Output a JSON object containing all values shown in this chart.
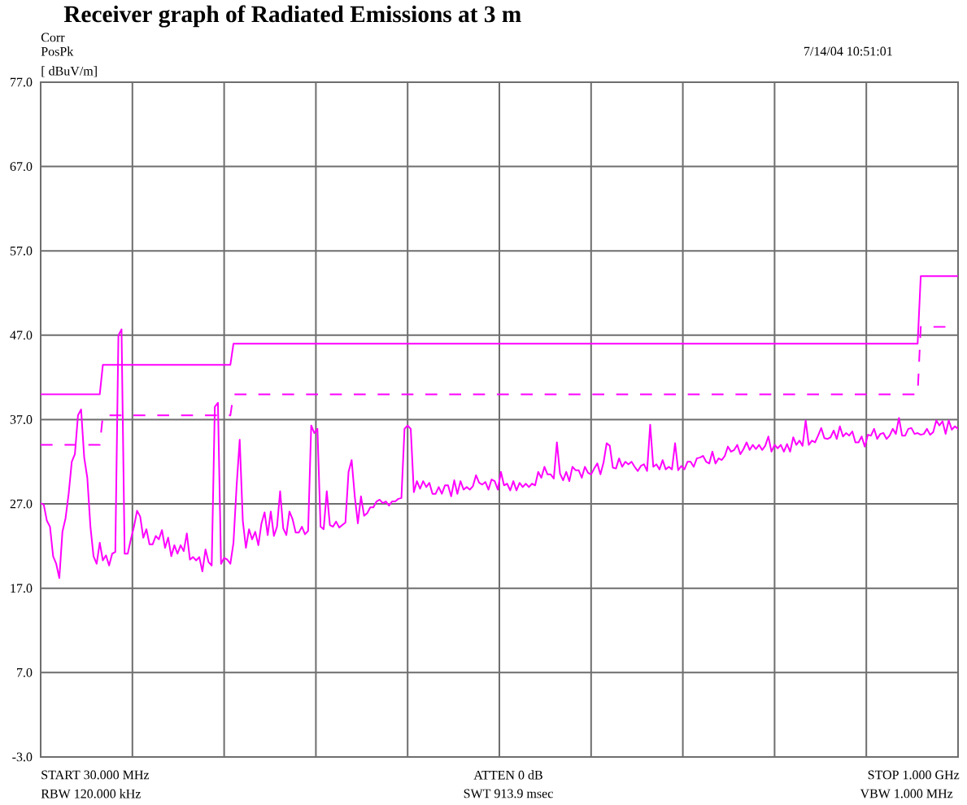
{
  "chart_data": {
    "type": "line",
    "title": "Receiver graph of Radiated Emissions at 3 m",
    "ylabel": "[ dBuV/m]",
    "annotations": [
      "Corr",
      "PosPk",
      "7/14/04 10:51:01",
      "START 30.000 MHz",
      "ATTEN 0 dB",
      "STOP 1.000 GHz",
      "RBW 120.000 kHz",
      "SWT 913.9 msec",
      "VBW 1.000 MHz"
    ],
    "ylim": [
      -3,
      77
    ],
    "yticks": [
      {
        "value": -3,
        "label": "-3.0"
      },
      {
        "value": 7,
        "label": "7.0"
      },
      {
        "value": 17,
        "label": "17.0"
      },
      {
        "value": 27,
        "label": "27.0"
      },
      {
        "value": 37,
        "label": "37.0"
      },
      {
        "value": 47,
        "label": "47.0"
      },
      {
        "value": 57,
        "label": "57.0"
      },
      {
        "value": 67,
        "label": "67.0"
      },
      {
        "value": 77,
        "label": "77.0"
      }
    ],
    "tick_labels": "y",
    "grid": true,
    "categories": [
      null,
      null,
      null,
      null,
      null,
      null,
      null,
      null,
      null,
      null,
      null,
      null,
      null,
      null,
      null,
      null,
      null,
      null,
      null,
      null,
      null,
      null,
      null,
      null,
      null,
      null,
      null,
      null,
      null,
      null,
      null,
      null,
      null,
      null,
      null,
      null,
      null,
      null,
      null,
      null,
      null,
      null,
      null,
      null,
      null,
      null,
      null,
      null,
      null,
      null,
      null,
      null,
      null,
      null,
      null,
      null,
      null,
      null,
      null,
      null,
      null,
      null,
      null,
      null,
      null,
      null,
      null,
      null,
      null,
      null,
      null,
      null,
      null,
      null,
      null,
      null,
      null,
      null,
      null,
      null,
      null,
      null,
      null,
      null,
      null,
      null,
      null,
      null,
      null,
      null,
      null,
      null,
      null,
      null,
      null,
      null,
      null,
      null,
      null,
      null,
      null,
      null,
      null,
      null,
      null,
      null,
      null,
      null,
      null,
      null,
      null,
      null,
      null,
      null,
      null,
      null,
      null,
      null,
      null,
      null,
      null,
      null,
      null,
      null,
      null,
      null,
      null,
      null,
      null,
      null,
      null,
      null,
      null,
      null,
      null,
      null,
      null,
      null,
      null,
      null,
      null,
      null,
      null,
      null,
      null,
      null,
      null,
      null,
      null,
      null,
      null,
      null,
      null,
      null,
      null,
      null,
      null,
      null,
      null,
      null,
      null,
      null,
      null,
      null,
      null,
      null,
      null,
      null,
      null,
      null,
      null,
      null,
      null,
      null,
      null,
      null,
      null,
      null,
      null,
      null,
      null,
      null,
      null,
      null,
      null,
      null,
      null,
      null,
      null,
      null,
      null,
      null,
      null,
      null,
      null,
      null,
      null,
      null,
      null,
      null,
      null,
      null,
      null,
      null,
      null,
      null,
      null,
      null,
      null,
      null,
      null,
      null,
      null,
      null,
      null,
      null,
      null,
      null,
      null,
      null,
      null,
      null,
      null,
      null,
      null,
      null,
      null,
      null,
      null,
      null,
      null,
      null,
      null,
      null,
      null,
      null,
      null,
      null,
      null,
      null,
      null,
      null,
      null,
      null,
      null,
      null,
      null,
      null,
      null,
      null,
      null,
      null,
      null,
      null,
      null,
      null,
      null,
      null,
      null,
      null,
      null,
      null,
      null,
      null,
      null,
      null,
      null,
      null,
      null,
      null,
      null,
      null,
      null,
      null,
      null,
      null,
      null,
      null,
      null,
      null,
      null,
      null,
      null,
      null,
      null,
      null,
      null,
      null,
      null,
      null,
      null,
      null,
      null,
      null,
      null,
      null
    ],
    "series": [
      {
        "color": "#ff00ff",
        "line_style": "solid",
        "values": [
          27.1,
          26.9,
          25.0,
          24.3,
          20.8,
          19.9,
          18.2,
          23.7,
          25.3,
          28.2,
          32.0,
          32.9,
          37.5,
          38.2,
          32.5,
          30.1,
          24.3,
          20.8,
          19.9,
          22.4,
          20.3,
          20.9,
          19.7,
          21.1,
          21.3,
          47.0,
          47.7,
          21.1,
          21.1,
          22.8,
          24.3,
          26.2,
          25.5,
          23.0,
          24.0,
          22.2,
          22.2,
          23.2,
          22.8,
          23.9,
          21.8,
          23.0,
          20.8,
          22.1,
          21.1,
          22.1,
          21.4,
          23.5,
          20.4,
          20.7,
          20.3,
          20.7,
          19.0,
          21.6,
          20.1,
          19.7,
          38.5,
          39.0,
          19.9,
          20.6,
          20.4,
          19.9,
          22.4,
          29.1,
          34.6,
          25.0,
          21.8,
          24.0,
          22.8,
          23.7,
          22.1,
          24.7,
          26.0,
          23.3,
          26.1,
          23.2,
          24.3,
          28.5,
          24.1,
          23.3,
          26.1,
          25.2,
          23.6,
          23.6,
          24.3,
          23.4,
          23.8,
          36.3,
          35.4,
          35.9,
          24.3,
          24.0,
          28.5,
          24.5,
          24.3,
          24.9,
          24.2,
          24.5,
          24.8,
          30.8,
          32.2,
          27.9,
          24.7,
          27.9,
          25.6,
          25.9,
          26.6,
          26.6,
          27.3,
          27.5,
          27.1,
          27.3,
          26.8,
          27.3,
          27.3,
          27.6,
          27.7,
          35.9,
          36.3,
          35.9,
          28.4,
          29.7,
          28.8,
          29.7,
          29.0,
          29.5,
          28.2,
          28.2,
          29.0,
          28.2,
          29.2,
          29.2,
          27.9,
          29.8,
          28.2,
          29.7,
          28.7,
          29.0,
          28.7,
          29.1,
          30.4,
          29.5,
          29.3,
          29.6,
          28.7,
          29.9,
          29.7,
          28.7,
          30.8,
          29.2,
          29.4,
          28.6,
          29.7,
          28.6,
          29.5,
          29.0,
          29.4,
          29.0,
          29.4,
          29.2,
          30.8,
          30.1,
          31.4,
          30.5,
          30.5,
          30.0,
          34.3,
          30.6,
          29.8,
          30.8,
          29.7,
          31.4,
          31.0,
          31.0,
          30.1,
          31.4,
          30.7,
          30.5,
          31.2,
          31.8,
          30.5,
          31.9,
          34.2,
          33.9,
          31.3,
          31.2,
          32.4,
          31.4,
          32.0,
          31.7,
          32.0,
          31.4,
          30.9,
          31.5,
          31.7,
          30.9,
          36.4,
          31.4,
          31.7,
          31.1,
          32.2,
          31.1,
          31.4,
          31.1,
          34.2,
          31.0,
          31.5,
          31.1,
          32.0,
          32.0,
          31.4,
          32.4,
          32.5,
          32.7,
          32.0,
          31.8,
          33.2,
          31.8,
          32.4,
          32.2,
          32.7,
          33.8,
          33.2,
          33.4,
          34.0,
          32.9,
          33.5,
          34.3,
          33.4,
          34.0,
          33.5,
          34.0,
          33.4,
          33.9,
          35.0,
          33.2,
          34.0,
          33.6,
          34.0,
          33.2,
          34.1,
          33.2,
          34.9,
          34.0,
          34.5,
          33.9,
          36.9,
          34.0,
          34.5,
          34.3,
          35.1,
          36.0,
          34.8,
          34.7,
          34.9,
          35.7,
          34.7,
          36.2,
          35.0,
          35.4,
          35.1,
          35.6,
          34.3,
          34.3,
          35.0,
          33.8,
          35.2,
          35.1,
          35.9,
          34.7,
          35.3,
          35.4,
          34.7,
          35.1,
          35.9,
          35.3,
          37.2,
          35.1,
          35.1,
          35.9,
          36.0,
          35.3,
          35.4,
          35.2,
          35.3,
          35.9,
          35.2,
          35.5,
          36.9,
          36.3,
          36.8,
          35.3,
          36.9,
          35.8,
          36.2,
          35.9
        ]
      },
      {
        "color": "#ff00ff",
        "line_style": "solid",
        "values": [
          40,
          40,
          40,
          40,
          40,
          40,
          40,
          40,
          40,
          40,
          40,
          40,
          40,
          40,
          40,
          40,
          40,
          40,
          40,
          40,
          43.5,
          43.5,
          43.5,
          43.5,
          43.5,
          43.5,
          43.5,
          43.5,
          43.5,
          43.5,
          43.5,
          43.5,
          43.5,
          43.5,
          43.5,
          43.5,
          43.5,
          43.5,
          43.5,
          43.5,
          43.5,
          43.5,
          43.5,
          43.5,
          43.5,
          43.5,
          43.5,
          43.5,
          43.5,
          43.5,
          43.5,
          43.5,
          43.5,
          43.5,
          43.5,
          43.5,
          43.5,
          43.5,
          43.5,
          43.5,
          43.5,
          43.5,
          46,
          46,
          46,
          46,
          46,
          46,
          46,
          46,
          46,
          46,
          46,
          46,
          46,
          46,
          46,
          46,
          46,
          46,
          46,
          46,
          46,
          46,
          46,
          46,
          46,
          46,
          46,
          46,
          46,
          46,
          46,
          46,
          46,
          46,
          46,
          46,
          46,
          46,
          46,
          46,
          46,
          46,
          46,
          46,
          46,
          46,
          46,
          46,
          46,
          46,
          46,
          46,
          46,
          46,
          46,
          46,
          46,
          46,
          46,
          46,
          46,
          46,
          46,
          46,
          46,
          46,
          46,
          46,
          46,
          46,
          46,
          46,
          46,
          46,
          46,
          46,
          46,
          46,
          46,
          46,
          46,
          46,
          46,
          46,
          46,
          46,
          46,
          46,
          46,
          46,
          46,
          46,
          46,
          46,
          46,
          46,
          46,
          46,
          46,
          46,
          46,
          46,
          46,
          46,
          46,
          46,
          46,
          46,
          46,
          46,
          46,
          46,
          46,
          46,
          46,
          46,
          46,
          46,
          46,
          46,
          46,
          46,
          46,
          46,
          46,
          46,
          46,
          46,
          46,
          46,
          46,
          46,
          46,
          46,
          46,
          46,
          46,
          46,
          46,
          46,
          46,
          46,
          46,
          46,
          46,
          46,
          46,
          46,
          46,
          46,
          46,
          46,
          46,
          46,
          46,
          46,
          46,
          46,
          46,
          46,
          46,
          46,
          46,
          46,
          46,
          46,
          46,
          46,
          46,
          46,
          46,
          46,
          46,
          46,
          46,
          46,
          46,
          46,
          46,
          46,
          46,
          46,
          46,
          46,
          46,
          46,
          46,
          46,
          46,
          46,
          46,
          46,
          46,
          46,
          46,
          46,
          46,
          46,
          46,
          46,
          46,
          46,
          46,
          46,
          46,
          46,
          46,
          46,
          46,
          46,
          46,
          46,
          46,
          46,
          46,
          46,
          46,
          46,
          46,
          46,
          46,
          54,
          54,
          54,
          54,
          54,
          54,
          54,
          54,
          54,
          54,
          54,
          54,
          54
        ]
      },
      {
        "color": "#ff00ff",
        "line_style": "dashed",
        "values": [
          34,
          34,
          34,
          34,
          34,
          34,
          34,
          34,
          34,
          34,
          34,
          34,
          34,
          34,
          34,
          34,
          34,
          34,
          34,
          34,
          37.5,
          37.5,
          37.5,
          37.5,
          37.5,
          37.5,
          37.5,
          37.5,
          37.5,
          37.5,
          37.5,
          37.5,
          37.5,
          37.5,
          37.5,
          37.5,
          37.5,
          37.5,
          37.5,
          37.5,
          37.5,
          37.5,
          37.5,
          37.5,
          37.5,
          37.5,
          37.5,
          37.5,
          37.5,
          37.5,
          37.5,
          37.5,
          37.5,
          37.5,
          37.5,
          37.5,
          37.5,
          37.5,
          37.5,
          37.5,
          37.5,
          37.5,
          40,
          40,
          40,
          40,
          40,
          40,
          40,
          40,
          40,
          40,
          40,
          40,
          40,
          40,
          40,
          40,
          40,
          40,
          40,
          40,
          40,
          40,
          40,
          40,
          40,
          40,
          40,
          40,
          40,
          40,
          40,
          40,
          40,
          40,
          40,
          40,
          40,
          40,
          40,
          40,
          40,
          40,
          40,
          40,
          40,
          40,
          40,
          40,
          40,
          40,
          40,
          40,
          40,
          40,
          40,
          40,
          40,
          40,
          40,
          40,
          40,
          40,
          40,
          40,
          40,
          40,
          40,
          40,
          40,
          40,
          40,
          40,
          40,
          40,
          40,
          40,
          40,
          40,
          40,
          40,
          40,
          40,
          40,
          40,
          40,
          40,
          40,
          40,
          40,
          40,
          40,
          40,
          40,
          40,
          40,
          40,
          40,
          40,
          40,
          40,
          40,
          40,
          40,
          40,
          40,
          40,
          40,
          40,
          40,
          40,
          40,
          40,
          40,
          40,
          40,
          40,
          40,
          40,
          40,
          40,
          40,
          40,
          40,
          40,
          40,
          40,
          40,
          40,
          40,
          40,
          40,
          40,
          40,
          40,
          40,
          40,
          40,
          40,
          40,
          40,
          40,
          40,
          40,
          40,
          40,
          40,
          40,
          40,
          40,
          40,
          40,
          40,
          40,
          40,
          40,
          40,
          40,
          40,
          40,
          40,
          40,
          40,
          40,
          40,
          40,
          40,
          40,
          40,
          40,
          40,
          40,
          40,
          40,
          40,
          40,
          40,
          40,
          40,
          40,
          40,
          40,
          40,
          40,
          40,
          40,
          40,
          40,
          40,
          40,
          40,
          40,
          40,
          40,
          40,
          40,
          40,
          40,
          40,
          40,
          40,
          40,
          40,
          40,
          40,
          40,
          40,
          40,
          40,
          40,
          40,
          40,
          40,
          40,
          40,
          40,
          40,
          40,
          40,
          40,
          40,
          40,
          48,
          48,
          48,
          48,
          48,
          48,
          48,
          48,
          48,
          48,
          null,
          null,
          null
        ]
      }
    ]
  }
}
